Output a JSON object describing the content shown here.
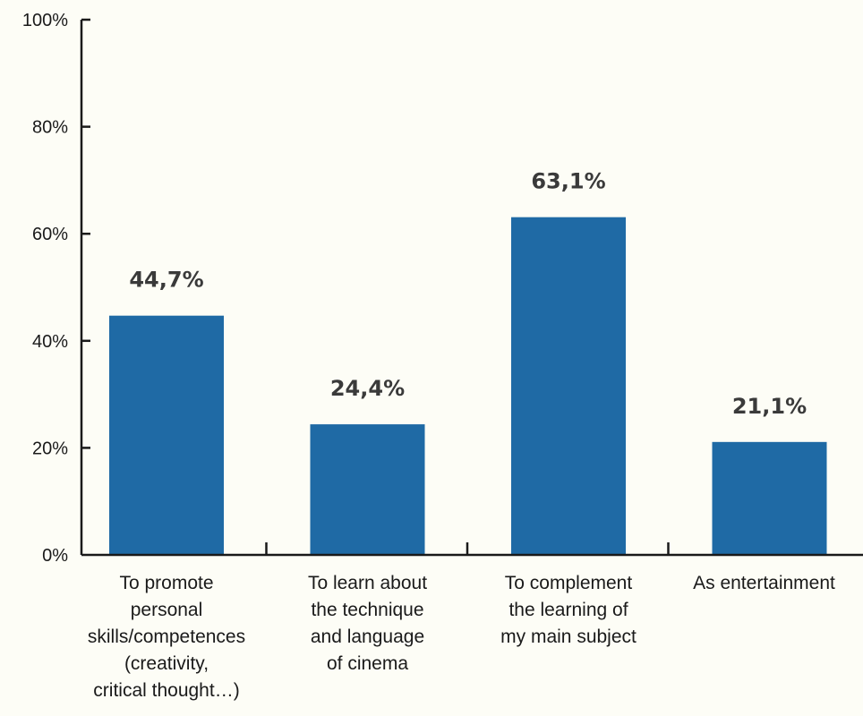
{
  "chart_data": {
    "type": "bar",
    "title": "",
    "xlabel": "",
    "ylabel": "",
    "ylim": [
      0,
      100
    ],
    "yticks": [
      0,
      20,
      40,
      60,
      80,
      100
    ],
    "ytick_labels": [
      "0%",
      "20%",
      "40%",
      "60%",
      "80%",
      "100%"
    ],
    "categories": [
      [
        "To promote",
        "personal",
        "skills/competences",
        "(creativity,",
        "critical thought…)"
      ],
      [
        "To learn about",
        "the technique",
        "and language",
        "of cinema"
      ],
      [
        "To complement",
        "the learning of",
        "my main subject"
      ],
      [
        "As entertainment"
      ]
    ],
    "values": [
      44.7,
      24.4,
      63.1,
      21.1
    ],
    "data_labels": [
      "44,7%",
      "24,4%",
      "63,1%",
      "21,1%"
    ],
    "bar_color": "#1f6aa5",
    "grid": false,
    "legend": "none"
  }
}
